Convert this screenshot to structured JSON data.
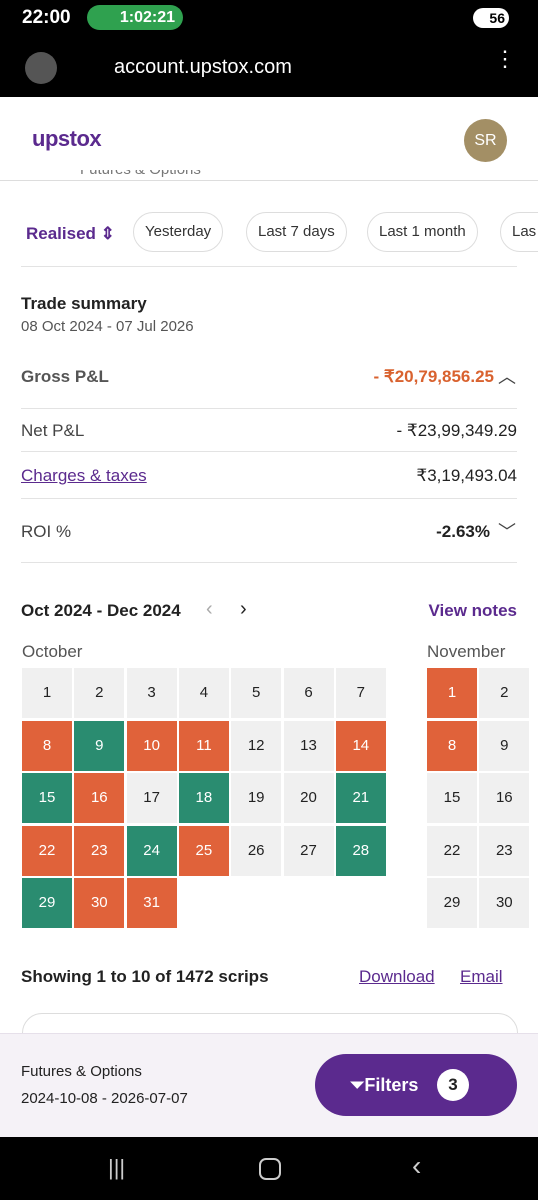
{
  "status_bar": {
    "time": "22:00",
    "call_timer": "1:02:21",
    "battery": "56"
  },
  "browser": {
    "url": "account.upstox.com"
  },
  "header": {
    "logo": "upstox",
    "avatar": "SR",
    "segment": "Futures & Options"
  },
  "tabs": [
    "Realised",
    "Yesterday",
    "Last 7 days",
    "Last 1 month",
    "Las"
  ],
  "summary": {
    "title": "Trade summary",
    "date_range": "08 Oct 2024 - 07 Jul 2026",
    "rows": [
      {
        "label": "Gross P&L",
        "value": "- ₹20,79,856.25"
      },
      {
        "label": "Net P&L",
        "value": "- ₹23,99,349.29"
      },
      {
        "label": "Charges & taxes",
        "value": "₹3,19,493.04"
      },
      {
        "label": "ROI %",
        "value": "-2.63%"
      }
    ]
  },
  "calendar": {
    "range": "Oct 2024 - Dec 2024",
    "notes_link": "View notes",
    "months": [
      {
        "name": "October",
        "columns": 7,
        "days": [
          {
            "day": "1"
          },
          {
            "day": "2"
          },
          {
            "day": "3"
          },
          {
            "day": "4"
          },
          {
            "day": "5"
          },
          {
            "day": "6"
          },
          {
            "day": "7"
          },
          {
            "day": "8",
            "color": "#e0623a"
          },
          {
            "day": "9",
            "color": "#2a8c70"
          },
          {
            "day": "10",
            "color": "#e0623a"
          },
          {
            "day": "11",
            "color": "#e0623a"
          },
          {
            "day": "12"
          },
          {
            "day": "13"
          },
          {
            "day": "14",
            "color": "#e0623a"
          },
          {
            "day": "15",
            "color": "#2a8c70"
          },
          {
            "day": "16",
            "color": "#e0623a"
          },
          {
            "day": "17"
          },
          {
            "day": "18",
            "color": "#2a8c70"
          },
          {
            "day": "19"
          },
          {
            "day": "20"
          },
          {
            "day": "21",
            "color": "#2a8c70"
          },
          {
            "day": "22",
            "color": "#e0623a"
          },
          {
            "day": "23",
            "color": "#e0623a"
          },
          {
            "day": "24",
            "color": "#2a8c70"
          },
          {
            "day": "25",
            "color": "#e0623a"
          },
          {
            "day": "26"
          },
          {
            "day": "27"
          },
          {
            "day": "28",
            "color": "#2a8c70"
          },
          {
            "day": "29",
            "color": "#2a8c70"
          },
          {
            "day": "30",
            "color": "#e0623a"
          },
          {
            "day": "31",
            "color": "#e0623a"
          }
        ]
      },
      {
        "name": "November",
        "columns": 2,
        "days": [
          {
            "day": "1",
            "color": "#e0623a"
          },
          {
            "day": "2"
          },
          {
            "day": "8",
            "color": "#e0623a"
          },
          {
            "day": "9"
          },
          {
            "day": "15"
          },
          {
            "day": "16"
          },
          {
            "day": "22"
          },
          {
            "day": "23"
          },
          {
            "day": "29"
          },
          {
            "day": "30"
          }
        ]
      }
    ]
  },
  "results": {
    "text": "Showing 1 to 10 of 1472 scrips",
    "download": "Download",
    "email": "Email"
  },
  "footer": {
    "segment": "Futures & Options",
    "date_range": "2024-10-08 - 2026-07-07",
    "filters": "Filters",
    "filter_count": "3"
  }
}
